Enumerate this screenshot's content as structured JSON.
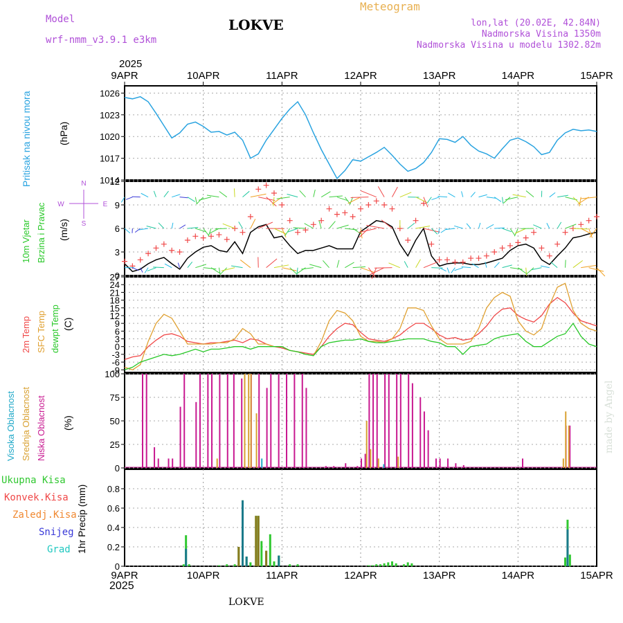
{
  "header": {
    "model_label": "Model",
    "model_name": "wrf-nmm_v3.9.1 e3km",
    "station": "LOKVE",
    "meteogram": "Meteogram",
    "lonlat": "lon,lat (20.02E, 42.84N)",
    "elevation": "Nadmorska Visina 1350m",
    "model_elevation": "Nadmorska Visina u modelu 1302.82m",
    "year_top": "2025",
    "year_bottom": "2025",
    "footer_station": "LOKVE",
    "watermark": "made by Angel"
  },
  "colors": {
    "pressure": "#29a3e0",
    "t2m": "#f04848",
    "tsfc": "#e0a030",
    "dewpt": "#28c828",
    "high_cloud": "#1fa8c8",
    "mid_cloud": "#d8a030",
    "low_cloud": "#c81890",
    "total_precip": "#30c830",
    "conv_precip": "#f04848",
    "frozen_precip": "#f08830",
    "snow": "#3838d8",
    "hail": "#20c8c0",
    "purple": "#b050d8"
  },
  "chart_data": [
    {
      "type": "line",
      "name": "pressure",
      "title": "Pritisak na nivou mora",
      "ylabel": "(hPa)",
      "ylim": [
        1014,
        1027
      ],
      "yticks": [
        "1014",
        "1017",
        "1020",
        "1023",
        "1026"
      ],
      "x_tick_labels": [
        "9APR",
        "10APR",
        "11APR",
        "12APR",
        "13APR",
        "14APR",
        "15APR"
      ],
      "x": [
        0,
        0.1,
        0.2,
        0.3,
        0.4,
        0.5,
        0.6,
        0.7,
        0.8,
        0.9,
        1.0,
        1.1,
        1.2,
        1.3,
        1.4,
        1.5,
        1.6,
        1.7,
        1.8,
        1.9,
        2.0,
        2.1,
        2.2,
        2.3,
        2.4,
        2.5,
        2.6,
        2.7,
        2.8,
        2.9,
        3.0,
        3.1,
        3.2,
        3.3,
        3.4,
        3.5,
        3.6,
        3.7,
        3.8,
        3.9,
        4.0,
        4.1,
        4.2,
        4.3,
        4.4,
        4.5,
        4.6,
        4.7,
        4.8,
        4.9,
        5.0,
        5.1,
        5.2,
        5.3,
        5.4,
        5.5,
        5.6,
        5.7,
        5.8,
        5.9,
        6.0
      ],
      "values": [
        1025.4,
        1025.2,
        1025.5,
        1024.8,
        1023.2,
        1021.5,
        1019.8,
        1020.5,
        1021.7,
        1022.0,
        1021.4,
        1020.6,
        1020.7,
        1020.2,
        1020.6,
        1019.5,
        1017.0,
        1017.6,
        1019.5,
        1021.0,
        1022.5,
        1023.8,
        1024.8,
        1023.0,
        1020.5,
        1018.2,
        1016.2,
        1014.2,
        1015.3,
        1016.8,
        1016.6,
        1017.2,
        1017.8,
        1018.5,
        1017.4,
        1016.2,
        1015.2,
        1015.6,
        1016.4,
        1017.8,
        1019.7,
        1019.6,
        1019.2,
        1020.0,
        1018.8,
        1018.0,
        1017.6,
        1017.0,
        1018.3,
        1019.5,
        1019.8,
        1019.3,
        1018.6,
        1017.5,
        1017.8,
        1019.5,
        1020.5,
        1021.0,
        1020.8,
        1020.9,
        1020.7
      ]
    },
    {
      "type": "line",
      "name": "wind",
      "title": "10m Vjetar Brzina i Pravac",
      "ylabel": "(m/s)",
      "ylim": [
        0,
        12
      ],
      "yticks": [
        "0",
        "3",
        "6",
        "9",
        "12"
      ],
      "compass": [
        "W",
        "E",
        "N",
        "S"
      ],
      "x": [
        0,
        0.1,
        0.2,
        0.3,
        0.4,
        0.5,
        0.6,
        0.7,
        0.8,
        0.9,
        1.0,
        1.1,
        1.2,
        1.3,
        1.4,
        1.5,
        1.6,
        1.7,
        1.8,
        1.9,
        2.0,
        2.1,
        2.2,
        2.3,
        2.4,
        2.5,
        2.6,
        2.7,
        2.8,
        2.9,
        3.0,
        3.1,
        3.2,
        3.3,
        3.4,
        3.5,
        3.6,
        3.7,
        3.8,
        3.9,
        4.0,
        4.1,
        4.2,
        4.3,
        4.4,
        4.5,
        4.6,
        4.7,
        4.8,
        4.9,
        5.0,
        5.1,
        5.2,
        5.3,
        5.4,
        5.5,
        5.6,
        5.7,
        5.8,
        5.9,
        6.0
      ],
      "speed": [
        1.5,
        0.5,
        0.8,
        1.5,
        2.0,
        2.3,
        1.5,
        0.8,
        2.2,
        3.0,
        3.6,
        3.8,
        3.2,
        3.0,
        4.3,
        2.8,
        5.5,
        6.2,
        6.5,
        4.8,
        5.0,
        3.8,
        2.8,
        3.2,
        3.2,
        3.5,
        3.8,
        3.4,
        3.4,
        3.4,
        5.6,
        6.3,
        7.0,
        6.8,
        6.2,
        4.0,
        2.5,
        4.5,
        6.0,
        2.5,
        1.2,
        1.5,
        1.6,
        1.6,
        1.4,
        1.4,
        1.6,
        1.9,
        2.2,
        3.2,
        3.8,
        4.0,
        3.5,
        2.0,
        1.4,
        2.5,
        3.5,
        4.8,
        5.0,
        5.3,
        5.5
      ],
      "gust": [
        1.8,
        1.2,
        2.0,
        2.8,
        3.5,
        4.0,
        3.2,
        3.0,
        4.5,
        5.0,
        4.8,
        5.0,
        5.2,
        4.6,
        6.0,
        5.5,
        7.5,
        11.0,
        11.5,
        10.5,
        9.0,
        7.0,
        5.5,
        5.8,
        6.5,
        7.0,
        8.5,
        7.8,
        8.0,
        7.5,
        8.5,
        9.0,
        9.5,
        9.0,
        8.5,
        6.0,
        4.5,
        7.0,
        9.2,
        4.0,
        2.0,
        2.0,
        1.7,
        1.7,
        2.2,
        2.2,
        2.5,
        3.0,
        3.5,
        3.8,
        4.2,
        4.8,
        5.5,
        3.5,
        2.5,
        4.0,
        5.5,
        6.0,
        6.5,
        7.0,
        7.5
      ]
    },
    {
      "type": "line",
      "name": "temperature",
      "title": "2m Temp, SFC Temp, dewpt Temp",
      "ylabel": "(C)",
      "ylim": [
        -10,
        27
      ],
      "yticks": [
        "-9",
        "-6",
        "-3",
        "0",
        "3",
        "6",
        "9",
        "12",
        "15",
        "18",
        "21",
        "24",
        "27"
      ],
      "legend": [
        "2m Temp",
        "SFC Temp",
        "dewpt Temp"
      ],
      "x": [
        0,
        0.1,
        0.2,
        0.3,
        0.4,
        0.5,
        0.6,
        0.7,
        0.8,
        0.9,
        1.0,
        1.1,
        1.2,
        1.3,
        1.4,
        1.5,
        1.6,
        1.7,
        1.8,
        1.9,
        2.0,
        2.1,
        2.2,
        2.3,
        2.4,
        2.5,
        2.6,
        2.7,
        2.8,
        2.9,
        3.0,
        3.1,
        3.2,
        3.3,
        3.4,
        3.5,
        3.6,
        3.7,
        3.8,
        3.9,
        4.0,
        4.1,
        4.2,
        4.3,
        4.4,
        4.5,
        4.6,
        4.7,
        4.8,
        4.9,
        5.0,
        5.1,
        5.2,
        5.3,
        5.4,
        5.5,
        5.6,
        5.7,
        5.8,
        5.9,
        6.0
      ],
      "series": [
        {
          "name": "2m Temp",
          "values": [
            -5,
            -4,
            -3.5,
            0,
            2.5,
            4.5,
            5,
            4,
            2,
            1.5,
            1,
            1.5,
            1.5,
            2,
            2.5,
            1.5,
            3,
            2.5,
            1,
            0,
            -0.5,
            -1.5,
            -2,
            -2.5,
            -3,
            0,
            4,
            7,
            9,
            8.5,
            5.5,
            3,
            2.5,
            2,
            3,
            4.5,
            7,
            9,
            9,
            7,
            4.5,
            3,
            3.5,
            2.5,
            3,
            5,
            8,
            12,
            14.5,
            15,
            12,
            10.5,
            9.5,
            12,
            16.5,
            19,
            17,
            13,
            10,
            9,
            8
          ]
        },
        {
          "name": "SFC Temp",
          "values": [
            -8,
            -9,
            -7,
            2,
            9,
            12.5,
            11,
            6,
            1,
            1,
            1,
            1,
            1.5,
            1.5,
            3,
            7,
            5,
            1,
            1,
            0,
            0,
            -1.5,
            -2,
            -3,
            -3.5,
            2,
            10,
            14,
            13,
            10,
            4,
            2,
            2,
            1.5,
            3,
            7,
            15,
            15,
            14,
            8,
            3,
            1,
            1,
            1,
            2,
            7,
            15,
            19,
            21,
            19.5,
            10,
            6,
            4.5,
            7,
            16,
            23,
            24.5,
            14,
            9,
            7,
            6
          ]
        },
        {
          "name": "dewpt Temp",
          "values": [
            -9,
            -8,
            -6,
            -5,
            -4,
            -3,
            -3.5,
            -3,
            -2,
            -1,
            -2,
            -1,
            -1,
            -0.5,
            0,
            0,
            -1,
            0,
            0,
            0,
            0,
            -1.5,
            -2,
            -3,
            -3.5,
            0,
            1.5,
            2,
            2.5,
            2.5,
            3,
            2,
            1.5,
            1.5,
            2,
            2.5,
            3,
            3,
            3,
            2,
            1.5,
            0,
            0,
            -3,
            0,
            0.5,
            1,
            3,
            4,
            4.5,
            5,
            2,
            0,
            0,
            2,
            4,
            5,
            9,
            4,
            1,
            0
          ]
        }
      ]
    },
    {
      "type": "bar",
      "name": "cloud",
      "title": "Visoka Oblacnost, Srednja Oblacnost, Niska Oblacnost",
      "ylabel": "(%)",
      "ylim": [
        0,
        100
      ],
      "yticks": [
        "0",
        "25",
        "50",
        "75",
        "100"
      ],
      "legend": [
        "Visoka Oblacnost",
        "Srednja Oblacnost",
        "Niska Oblacnost"
      ],
      "low": [
        [
          0.22,
          100
        ],
        [
          0.27,
          100
        ],
        [
          0.37,
          22
        ],
        [
          0.42,
          10
        ],
        [
          0.55,
          10
        ],
        [
          0.6,
          10
        ],
        [
          0.7,
          65
        ],
        [
          0.75,
          100
        ],
        [
          0.9,
          70
        ],
        [
          0.95,
          100
        ],
        [
          1.05,
          100
        ],
        [
          1.1,
          100
        ],
        [
          1.2,
          100
        ],
        [
          1.3,
          100
        ],
        [
          1.38,
          100
        ],
        [
          1.48,
          95
        ],
        [
          1.6,
          100
        ],
        [
          1.7,
          100
        ],
        [
          1.8,
          85
        ],
        [
          1.85,
          100
        ],
        [
          1.95,
          100
        ],
        [
          2.05,
          100
        ],
        [
          2.15,
          100
        ],
        [
          2.25,
          100
        ],
        [
          2.3,
          85
        ],
        [
          2.55,
          2
        ],
        [
          2.65,
          2
        ],
        [
          2.8,
          5
        ],
        [
          2.95,
          2
        ],
        [
          3.0,
          10
        ],
        [
          3.05,
          15
        ],
        [
          3.1,
          100
        ],
        [
          3.15,
          100
        ],
        [
          3.2,
          100
        ],
        [
          3.3,
          100
        ],
        [
          3.35,
          100
        ],
        [
          3.45,
          100
        ],
        [
          3.5,
          100
        ],
        [
          3.6,
          100
        ],
        [
          3.65,
          90
        ],
        [
          3.75,
          75
        ],
        [
          3.8,
          60
        ],
        [
          3.85,
          40
        ],
        [
          3.95,
          10
        ],
        [
          4.0,
          10
        ],
        [
          4.1,
          10
        ],
        [
          4.2,
          5
        ],
        [
          4.3,
          3
        ],
        [
          5.05,
          10
        ],
        [
          5.6,
          45
        ],
        [
          5.65,
          45
        ]
      ],
      "mid": [
        [
          1.15,
          10
        ],
        [
          1.5,
          100
        ],
        [
          1.55,
          100
        ],
        [
          1.58,
          100
        ],
        [
          1.65,
          58
        ],
        [
          3.05,
          50
        ],
        [
          3.1,
          20
        ],
        [
          3.2,
          10
        ],
        [
          3.45,
          12
        ],
        [
          5.55,
          10
        ],
        [
          5.58,
          60
        ],
        [
          5.62,
          45
        ]
      ],
      "high": [
        [
          1.7,
          10
        ],
        [
          3.25,
          4
        ]
      ]
    },
    {
      "type": "bar",
      "name": "precip",
      "title": "1hr Precip",
      "ylabel": "1hr Precip (mm)",
      "ylim": [
        0,
        1.0
      ],
      "yticks": [
        "0",
        "0.2",
        "0.4",
        "0.6",
        "0.8"
      ],
      "legend": [
        "Ukupna Kisa",
        "Konvek.Kisa",
        "Zaledj.Kisa",
        "Snijeg",
        "Grad"
      ],
      "total": [
        [
          0.75,
          0.02
        ],
        [
          0.78,
          0.32
        ],
        [
          0.82,
          0.02
        ],
        [
          1.2,
          0.01
        ],
        [
          1.3,
          0.02
        ],
        [
          1.4,
          0.02
        ],
        [
          1.45,
          0.2
        ],
        [
          1.5,
          0.68
        ],
        [
          1.55,
          0.1
        ],
        [
          1.6,
          0.04
        ],
        [
          1.67,
          0.52
        ],
        [
          1.7,
          0.52
        ],
        [
          1.74,
          0.26
        ],
        [
          1.8,
          0.16
        ],
        [
          1.85,
          0.33
        ],
        [
          1.9,
          0.05
        ],
        [
          1.96,
          0.11
        ],
        [
          2.1,
          0.02
        ],
        [
          2.2,
          0.02
        ],
        [
          3.1,
          0.01
        ],
        [
          3.15,
          0.01
        ],
        [
          3.2,
          0.02
        ],
        [
          3.25,
          0.02
        ],
        [
          3.3,
          0.03
        ],
        [
          3.35,
          0.04
        ],
        [
          3.4,
          0.05
        ],
        [
          3.45,
          0.03
        ],
        [
          3.55,
          0.02
        ],
        [
          3.6,
          0.04
        ],
        [
          3.65,
          0.03
        ],
        [
          5.6,
          0.09
        ],
        [
          5.63,
          0.48
        ],
        [
          5.66,
          0.12
        ]
      ],
      "convective": [
        [
          1.45,
          0.2
        ],
        [
          1.67,
          0.52
        ],
        [
          1.7,
          0.52
        ],
        [
          1.8,
          0.16
        ]
      ],
      "snow_part": [
        [
          0.78,
          0.18
        ],
        [
          1.5,
          0.68
        ],
        [
          1.55,
          0.1
        ],
        [
          1.96,
          0.11
        ],
        [
          5.63,
          0.38
        ]
      ]
    }
  ]
}
